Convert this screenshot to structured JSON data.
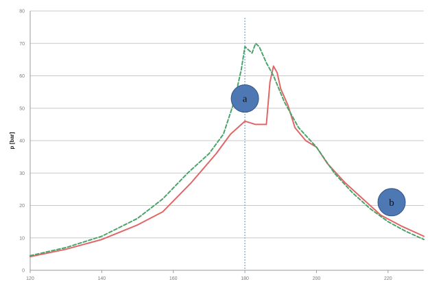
{
  "chart_data": {
    "type": "line",
    "title": "",
    "xlabel": "",
    "ylabel": "p [bar]",
    "xlim": [
      120,
      230
    ],
    "ylim": [
      0,
      80
    ],
    "x_ticks": [
      "120",
      "140",
      "160",
      "180",
      "200",
      "220"
    ],
    "x_tick_values": [
      120,
      140,
      160,
      180,
      200,
      220
    ],
    "y_ticks": [
      "0",
      "10",
      "20",
      "30",
      "40",
      "50",
      "60",
      "70",
      "80"
    ],
    "y_tick_values": [
      0,
      10,
      20,
      30,
      40,
      50,
      60,
      70,
      80
    ],
    "grid": "horizontal",
    "reference_line_x": 180,
    "series": [
      {
        "color": "#e06666",
        "style": "solid",
        "x": [
          120,
          130,
          140,
          150,
          157,
          165,
          172,
          176,
          180,
          183,
          186,
          187,
          188,
          189,
          190,
          192,
          194,
          197,
          200,
          203,
          208,
          213,
          218,
          224,
          230
        ],
        "y": [
          4.2,
          6.5,
          9.5,
          14,
          18,
          27,
          36,
          42,
          46,
          45,
          45,
          58,
          63,
          61,
          56,
          51,
          44,
          40,
          38,
          33,
          27,
          22,
          17,
          13.5,
          10.5
        ]
      },
      {
        "color": "#4aa36b",
        "style": "dashed",
        "x": [
          120,
          130,
          140,
          150,
          157,
          164,
          170,
          174,
          177,
          179,
          180,
          182,
          183,
          184,
          186,
          188,
          191,
          195,
          200,
          205,
          210,
          215,
          220,
          225,
          230
        ],
        "y": [
          4.5,
          7,
          10.5,
          16,
          22,
          30,
          36,
          42,
          52,
          62,
          69,
          67,
          70,
          69,
          64,
          60,
          52,
          44,
          38,
          30,
          24,
          19,
          15,
          12,
          9.5
        ]
      }
    ],
    "annotations": [
      {
        "label": "a",
        "x": 180,
        "y": 53
      },
      {
        "label": "b",
        "x": 221,
        "y": 21
      }
    ]
  }
}
